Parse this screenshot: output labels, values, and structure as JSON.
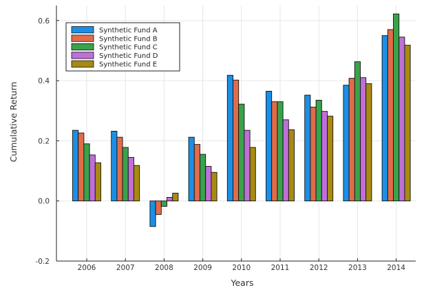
{
  "chart_data": {
    "type": "bar",
    "title": "",
    "xlabel": "Years",
    "ylabel": "Cumulative Return",
    "categories": [
      "2006",
      "2007",
      "2008",
      "2009",
      "2010",
      "2011",
      "2012",
      "2013",
      "2014"
    ],
    "ylim": [
      -0.2,
      0.65
    ],
    "yticks": [
      "-0.2",
      "0.0",
      "0.2",
      "0.4",
      "0.6"
    ],
    "grid": true,
    "legend_position": "top-left",
    "series": [
      {
        "name": "Synthetic Fund A",
        "color": "#1b8fe6",
        "values": [
          0.235,
          0.232,
          -0.085,
          0.212,
          0.418,
          0.365,
          0.352,
          0.385,
          0.55
        ]
      },
      {
        "name": "Synthetic Fund B",
        "color": "#e06c4a",
        "values": [
          0.226,
          0.212,
          -0.045,
          0.188,
          0.402,
          0.33,
          0.312,
          0.408,
          0.57
        ]
      },
      {
        "name": "Synthetic Fund C",
        "color": "#3aa24c",
        "values": [
          0.19,
          0.178,
          -0.018,
          0.155,
          0.322,
          0.33,
          0.335,
          0.463,
          0.622
        ]
      },
      {
        "name": "Synthetic Fund D",
        "color": "#bf6fd8",
        "values": [
          0.153,
          0.145,
          0.012,
          0.115,
          0.235,
          0.27,
          0.298,
          0.41,
          0.545
        ]
      },
      {
        "name": "Synthetic Fund E",
        "color": "#a88a12",
        "values": [
          0.127,
          0.118,
          0.026,
          0.095,
          0.178,
          0.237,
          0.282,
          0.39,
          0.518
        ]
      }
    ]
  }
}
